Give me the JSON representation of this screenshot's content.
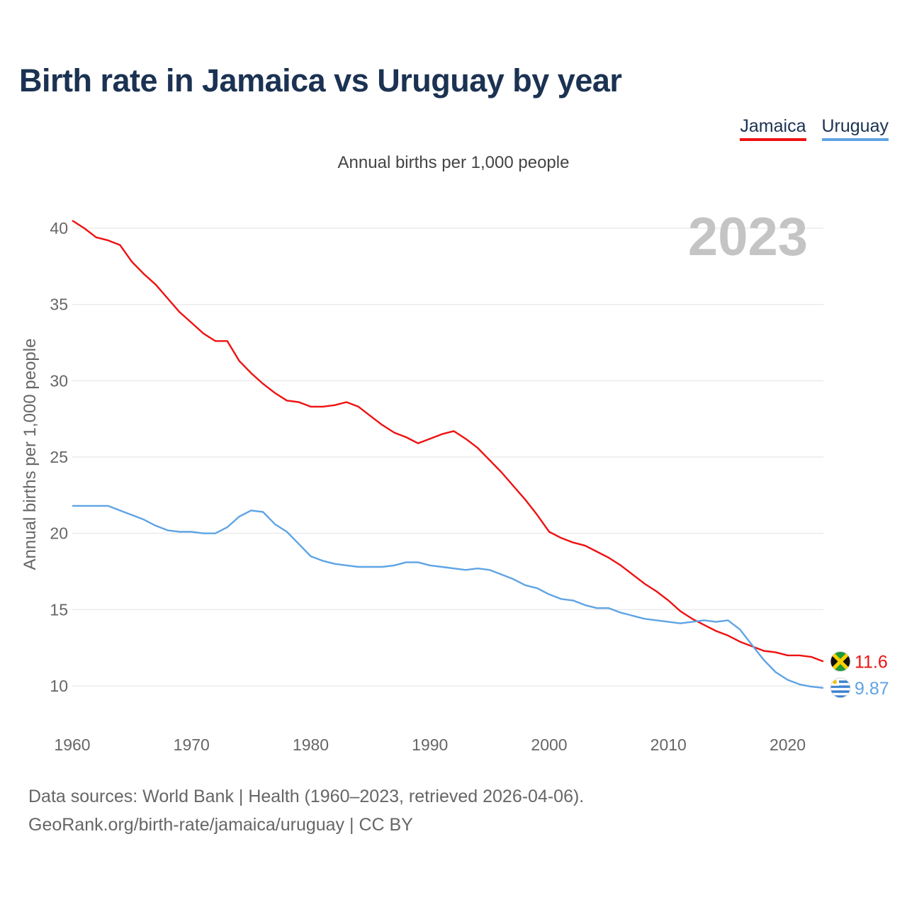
{
  "title": "Birth rate in Jamaica vs Uruguay by year",
  "subtitle": "Annual births per 1,000 people",
  "year_label": "2023",
  "footer": {
    "line1": "Data sources: World Bank | Health (1960–2023, retrieved 2026-04-06).",
    "line2": "GeoRank.org/birth-rate/jamaica/uruguay | CC BY"
  },
  "colors": {
    "jamaica": "#ee1111",
    "uruguay": "#5fa4e4",
    "grid": "#e6e6e6"
  },
  "chart_data": {
    "type": "line",
    "title": "Birth rate in Jamaica vs Uruguay by year",
    "xlabel": "",
    "ylabel": "Annual births per 1,000 people",
    "xlim": [
      1960,
      2023
    ],
    "ylim": [
      8,
      41
    ],
    "x_ticks": [
      1960,
      1970,
      1980,
      1990,
      2000,
      2010,
      2020
    ],
    "y_ticks": [
      10,
      15,
      20,
      25,
      30,
      35,
      40
    ],
    "grid": true,
    "legend": "top-right",
    "x": [
      1960,
      1961,
      1962,
      1963,
      1964,
      1965,
      1966,
      1967,
      1968,
      1969,
      1970,
      1971,
      1972,
      1973,
      1974,
      1975,
      1976,
      1977,
      1978,
      1979,
      1980,
      1981,
      1982,
      1983,
      1984,
      1985,
      1986,
      1987,
      1988,
      1989,
      1990,
      1991,
      1992,
      1993,
      1994,
      1995,
      1996,
      1997,
      1998,
      1999,
      2000,
      2001,
      2002,
      2003,
      2004,
      2005,
      2006,
      2007,
      2008,
      2009,
      2010,
      2011,
      2012,
      2013,
      2014,
      2015,
      2016,
      2017,
      2018,
      2019,
      2020,
      2021,
      2022,
      2023
    ],
    "series": [
      {
        "name": "Jamaica",
        "color": "#ee1111",
        "end_label": "11.6",
        "values": [
          40.5,
          40.0,
          39.4,
          39.2,
          38.9,
          37.8,
          37.0,
          36.3,
          35.4,
          34.5,
          33.8,
          33.1,
          32.6,
          32.6,
          31.3,
          30.5,
          29.8,
          29.2,
          28.7,
          28.6,
          28.3,
          28.3,
          28.4,
          28.6,
          28.3,
          27.7,
          27.1,
          26.6,
          26.3,
          25.9,
          26.2,
          26.5,
          26.7,
          26.2,
          25.6,
          24.8,
          24.0,
          23.1,
          22.2,
          21.2,
          20.1,
          19.7,
          19.4,
          19.2,
          18.8,
          18.4,
          17.9,
          17.3,
          16.7,
          16.2,
          15.6,
          14.9,
          14.4,
          14.0,
          13.6,
          13.3,
          12.9,
          12.6,
          12.3,
          12.2,
          12.0,
          12.0,
          11.9,
          11.6
        ]
      },
      {
        "name": "Uruguay",
        "color": "#5fa4e4",
        "end_label": "9.87",
        "values": [
          21.8,
          21.8,
          21.8,
          21.8,
          21.5,
          21.2,
          20.9,
          20.5,
          20.2,
          20.1,
          20.1,
          20.0,
          20.0,
          20.4,
          21.1,
          21.5,
          21.4,
          20.6,
          20.1,
          19.3,
          18.5,
          18.2,
          18.0,
          17.9,
          17.8,
          17.8,
          17.8,
          17.9,
          18.1,
          18.1,
          17.9,
          17.8,
          17.7,
          17.6,
          17.7,
          17.6,
          17.3,
          17.0,
          16.6,
          16.4,
          16.0,
          15.7,
          15.6,
          15.3,
          15.1,
          15.1,
          14.8,
          14.6,
          14.4,
          14.3,
          14.2,
          14.1,
          14.2,
          14.3,
          14.2,
          14.3,
          13.7,
          12.7,
          11.7,
          10.9,
          10.4,
          10.1,
          9.95,
          9.87
        ]
      }
    ]
  }
}
